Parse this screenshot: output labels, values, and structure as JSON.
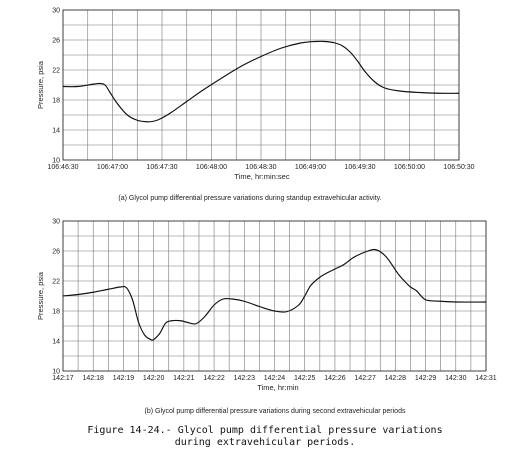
{
  "chart_data": [
    {
      "type": "line",
      "title": "",
      "xlabel": "Time, hr:min:sec",
      "ylabel": "Pressure, psia",
      "ylim": [
        10,
        30
      ],
      "yticks": [
        10,
        14,
        18,
        22,
        26,
        30
      ],
      "xlim": [
        0,
        8
      ],
      "xticks": [
        "106:46:30",
        "106:47:00",
        "106:47:30",
        "106:48:00",
        "106:48:30",
        "106:49:00",
        "106:49:30",
        "106:50:00",
        "106:50:30"
      ],
      "grid": true,
      "caption": "(a) Glycol pump differential pressure variations during standup extravehicular activity.",
      "series": [
        {
          "x": [
            0,
            0.3,
            0.6,
            0.75,
            0.85,
            0.95,
            1.1,
            1.3,
            1.5,
            1.7,
            1.85,
            2.0,
            2.2,
            2.5,
            2.8,
            3.2,
            3.6,
            4.0,
            4.4,
            4.8,
            5.1,
            5.3,
            5.5,
            5.65,
            5.8,
            5.95,
            6.1,
            6.3,
            6.5,
            6.8,
            7.2,
            7.6,
            8.0
          ],
          "y": [
            19.8,
            19.8,
            20.1,
            20.2,
            20.0,
            19.0,
            17.5,
            16.0,
            15.3,
            15.1,
            15.2,
            15.6,
            16.4,
            17.8,
            19.2,
            20.9,
            22.5,
            23.8,
            24.9,
            25.6,
            25.8,
            25.8,
            25.6,
            25.2,
            24.4,
            23.2,
            21.8,
            20.4,
            19.6,
            19.2,
            19.0,
            18.9,
            18.9
          ]
        }
      ]
    },
    {
      "type": "line",
      "title": "",
      "xlabel": "Time, hr:min",
      "ylabel": "Pressure, psia",
      "ylim": [
        10,
        30
      ],
      "yticks": [
        10,
        14,
        18,
        22,
        26,
        30
      ],
      "xlim": [
        0,
        14
      ],
      "xticks": [
        "142:17",
        "142:18",
        "142:19",
        "142:20",
        "142:21",
        "142:22",
        "142:23",
        "142:24",
        "142:25",
        "142:26",
        "142:27",
        "142:28",
        "142:29",
        "142:30",
        "142:31"
      ],
      "grid": true,
      "caption": "(b) Glycol pump differential pressure variations during second extravehicular periods",
      "series": [
        {
          "x": [
            0,
            0.5,
            1.0,
            1.5,
            1.9,
            2.1,
            2.3,
            2.5,
            2.7,
            2.9,
            3.0,
            3.2,
            3.4,
            3.6,
            3.9,
            4.1,
            4.4,
            4.7,
            5.0,
            5.3,
            5.6,
            6.0,
            6.5,
            7.0,
            7.4,
            7.8,
            8.0,
            8.2,
            8.5,
            8.8,
            9.0,
            9.3,
            9.6,
            9.9,
            10.1,
            10.3,
            10.5,
            10.7,
            10.9,
            11.1,
            11.3,
            11.5,
            11.7,
            12.0,
            12.5,
            13.0,
            14.0
          ],
          "y": [
            20.0,
            20.2,
            20.5,
            20.9,
            21.2,
            21.1,
            19.5,
            16.5,
            14.8,
            14.2,
            14.2,
            15.0,
            16.4,
            16.7,
            16.7,
            16.5,
            16.3,
            17.3,
            18.8,
            19.6,
            19.6,
            19.3,
            18.6,
            18.0,
            17.9,
            18.8,
            20.0,
            21.4,
            22.5,
            23.2,
            23.6,
            24.2,
            25.1,
            25.7,
            26.0,
            26.2,
            25.9,
            25.2,
            24.1,
            22.9,
            22.0,
            21.2,
            20.7,
            19.5,
            19.3,
            19.2,
            19.2
          ]
        }
      ]
    }
  ],
  "figure_caption": {
    "line1": "Figure 14-24.- Glycol pump differential pressure variations",
    "line2": "during extravehicular periods."
  }
}
